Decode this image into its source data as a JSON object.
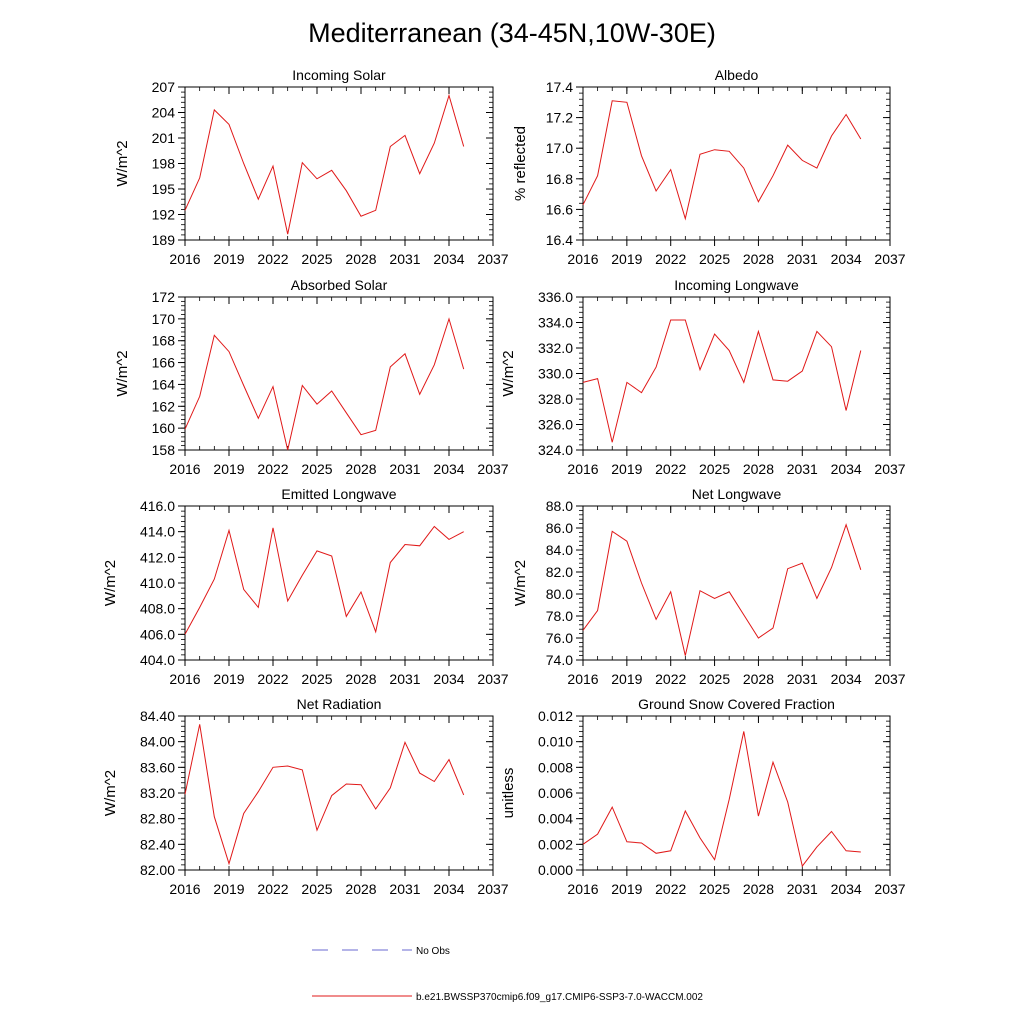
{
  "page": {
    "title": "Mediterranean (34-45N,10W-30E)"
  },
  "legend": {
    "obs_label": "No Obs",
    "obs_color": "#6a6ad0",
    "model_label": "b.e21.BWSSP370cmip6.f09_g17.CMIP6-SSP3-7.0-WACCM.002",
    "model_color": "#e01818"
  },
  "chart_data": [
    {
      "type": "line",
      "title": "Incoming Solar",
      "ylabel": "W/m^2",
      "xlim": [
        2016,
        2037
      ],
      "ylim": [
        189,
        207
      ],
      "xticks": [
        2016,
        2019,
        2022,
        2025,
        2028,
        2031,
        2034,
        2037
      ],
      "xtick_labels": [
        "2016",
        "2019",
        "2022",
        "2025",
        "2028",
        "2031",
        "2034",
        "2037"
      ],
      "yticks": [
        189,
        192,
        195,
        198,
        201,
        204,
        207
      ],
      "ytick_labels": [
        "189",
        "192",
        "195",
        "198",
        "201",
        "204",
        "207"
      ],
      "ymajor": 3,
      "yminor": 0.6,
      "xminor": 1,
      "series": [
        {
          "name": "b.e21.BWSSP370cmip6.f09_g17.CMIP6-SSP3-7.0-WACCM.002",
          "x": [
            2016,
            2017,
            2018,
            2019,
            2020,
            2021,
            2022,
            2023,
            2024,
            2025,
            2026,
            2027,
            2028,
            2029,
            2030,
            2031,
            2032,
            2033,
            2034,
            2035
          ],
          "values": [
            192.5,
            196.3,
            204.3,
            202.6,
            198.0,
            193.8,
            197.7,
            189.7,
            198.1,
            196.2,
            197.2,
            194.8,
            191.8,
            192.5,
            200.0,
            201.3,
            196.8,
            200.4,
            206.0,
            200.0
          ]
        }
      ]
    },
    {
      "type": "line",
      "title": "Albedo",
      "ylabel": "% reflected",
      "xlim": [
        2016,
        2037
      ],
      "ylim": [
        16.4,
        17.4
      ],
      "xticks": [
        2016,
        2019,
        2022,
        2025,
        2028,
        2031,
        2034,
        2037
      ],
      "xtick_labels": [
        "2016",
        "2019",
        "2022",
        "2025",
        "2028",
        "2031",
        "2034",
        "2037"
      ],
      "yticks": [
        16.4,
        16.6,
        16.8,
        17.0,
        17.2,
        17.4
      ],
      "ytick_labels": [
        "16.4",
        "16.6",
        "16.8",
        "17.0",
        "17.2",
        "17.4"
      ],
      "ymajor": 0.2,
      "yminor": 0.04,
      "xminor": 1,
      "series": [
        {
          "name": "b.e21.BWSSP370cmip6.f09_g17.CMIP6-SSP3-7.0-WACCM.002",
          "x": [
            2016,
            2017,
            2018,
            2019,
            2020,
            2021,
            2022,
            2023,
            2024,
            2025,
            2026,
            2027,
            2028,
            2029,
            2030,
            2031,
            2032,
            2033,
            2034,
            2035
          ],
          "values": [
            16.63,
            16.82,
            17.31,
            17.3,
            16.95,
            16.72,
            16.86,
            16.54,
            16.96,
            16.99,
            16.98,
            16.87,
            16.65,
            16.82,
            17.02,
            16.92,
            16.87,
            17.08,
            17.22,
            17.06
          ]
        }
      ]
    },
    {
      "type": "line",
      "title": "Absorbed Solar",
      "ylabel": "W/m^2",
      "xlim": [
        2016,
        2037
      ],
      "ylim": [
        158,
        172
      ],
      "xticks": [
        2016,
        2019,
        2022,
        2025,
        2028,
        2031,
        2034,
        2037
      ],
      "xtick_labels": [
        "2016",
        "2019",
        "2022",
        "2025",
        "2028",
        "2031",
        "2034",
        "2037"
      ],
      "yticks": [
        158,
        160,
        162,
        164,
        166,
        168,
        170,
        172
      ],
      "ytick_labels": [
        "158",
        "160",
        "162",
        "164",
        "166",
        "168",
        "170",
        "172"
      ],
      "ymajor": 2,
      "yminor": 0.4,
      "xminor": 1,
      "series": [
        {
          "name": "b.e21.BWSSP370cmip6.f09_g17.CMIP6-SSP3-7.0-WACCM.002",
          "x": [
            2016,
            2017,
            2018,
            2019,
            2020,
            2021,
            2022,
            2023,
            2024,
            2025,
            2026,
            2027,
            2028,
            2029,
            2030,
            2031,
            2032,
            2033,
            2034,
            2035
          ],
          "values": [
            159.9,
            162.9,
            168.5,
            167.0,
            163.9,
            160.9,
            163.8,
            158.0,
            163.9,
            162.2,
            163.4,
            161.4,
            159.4,
            159.8,
            165.6,
            166.8,
            163.1,
            165.8,
            170.0,
            165.4
          ]
        }
      ]
    },
    {
      "type": "line",
      "title": "Incoming Longwave",
      "ylabel": "W/m^2",
      "xlim": [
        2016,
        2037
      ],
      "ylim": [
        324,
        336
      ],
      "xticks": [
        2016,
        2019,
        2022,
        2025,
        2028,
        2031,
        2034,
        2037
      ],
      "xtick_labels": [
        "2016",
        "2019",
        "2022",
        "2025",
        "2028",
        "2031",
        "2034",
        "2037"
      ],
      "yticks": [
        324,
        326,
        328,
        330,
        332,
        334,
        336
      ],
      "ytick_labels": [
        "324.0",
        "326.0",
        "328.0",
        "330.0",
        "332.0",
        "334.0",
        "336.0"
      ],
      "ymajor": 2,
      "yminor": 0.4,
      "xminor": 1,
      "series": [
        {
          "name": "b.e21.BWSSP370cmip6.f09_g17.CMIP6-SSP3-7.0-WACCM.002",
          "x": [
            2016,
            2017,
            2018,
            2019,
            2020,
            2021,
            2022,
            2023,
            2024,
            2025,
            2026,
            2027,
            2028,
            2029,
            2030,
            2031,
            2032,
            2033,
            2034,
            2035
          ],
          "values": [
            329.3,
            329.6,
            324.6,
            329.3,
            328.5,
            330.5,
            334.2,
            334.2,
            330.3,
            333.1,
            331.8,
            329.3,
            333.3,
            329.5,
            329.4,
            330.2,
            333.3,
            332.1,
            327.1,
            331.8
          ]
        }
      ]
    },
    {
      "type": "line",
      "title": "Emitted Longwave",
      "ylabel": "W/m^2",
      "xlim": [
        2016,
        2037
      ],
      "ylim": [
        404,
        416
      ],
      "xticks": [
        2016,
        2019,
        2022,
        2025,
        2028,
        2031,
        2034,
        2037
      ],
      "xtick_labels": [
        "2016",
        "2019",
        "2022",
        "2025",
        "2028",
        "2031",
        "2034",
        "2037"
      ],
      "yticks": [
        404,
        406,
        408,
        410,
        412,
        414,
        416
      ],
      "ytick_labels": [
        "404.0",
        "406.0",
        "408.0",
        "410.0",
        "412.0",
        "414.0",
        "416.0"
      ],
      "ymajor": 2,
      "yminor": 0.4,
      "xminor": 1,
      "series": [
        {
          "name": "b.e21.BWSSP370cmip6.f09_g17.CMIP6-SSP3-7.0-WACCM.002",
          "x": [
            2016,
            2017,
            2018,
            2019,
            2020,
            2021,
            2022,
            2023,
            2024,
            2025,
            2026,
            2027,
            2028,
            2029,
            2030,
            2031,
            2032,
            2033,
            2034,
            2035
          ],
          "values": [
            406.0,
            408.1,
            410.3,
            414.1,
            409.5,
            408.1,
            414.3,
            408.6,
            410.6,
            412.5,
            412.1,
            407.4,
            409.3,
            406.2,
            411.6,
            413.0,
            412.9,
            414.4,
            413.4,
            414.0
          ]
        }
      ]
    },
    {
      "type": "line",
      "title": "Net Longwave",
      "ylabel": "W/m^2",
      "xlim": [
        2016,
        2037
      ],
      "ylim": [
        74,
        88
      ],
      "xticks": [
        2016,
        2019,
        2022,
        2025,
        2028,
        2031,
        2034,
        2037
      ],
      "xtick_labels": [
        "2016",
        "2019",
        "2022",
        "2025",
        "2028",
        "2031",
        "2034",
        "2037"
      ],
      "yticks": [
        74,
        76,
        78,
        80,
        82,
        84,
        86,
        88
      ],
      "ytick_labels": [
        "74.0",
        "76.0",
        "78.0",
        "80.0",
        "82.0",
        "84.0",
        "86.0",
        "88.0"
      ],
      "ymajor": 2,
      "yminor": 0.4,
      "xminor": 1,
      "series": [
        {
          "name": "b.e21.BWSSP370cmip6.f09_g17.CMIP6-SSP3-7.0-WACCM.002",
          "x": [
            2016,
            2017,
            2018,
            2019,
            2020,
            2021,
            2022,
            2023,
            2024,
            2025,
            2026,
            2027,
            2028,
            2029,
            2030,
            2031,
            2032,
            2033,
            2034,
            2035
          ],
          "values": [
            76.7,
            78.5,
            85.7,
            84.8,
            81.0,
            77.7,
            80.2,
            74.4,
            80.3,
            79.6,
            80.2,
            78.1,
            76.0,
            76.9,
            82.3,
            82.8,
            79.6,
            82.4,
            86.3,
            82.2
          ]
        }
      ]
    },
    {
      "type": "line",
      "title": "Net Radiation",
      "ylabel": "W/m^2",
      "xlim": [
        2016,
        2037
      ],
      "ylim": [
        82.0,
        84.4
      ],
      "xticks": [
        2016,
        2019,
        2022,
        2025,
        2028,
        2031,
        2034,
        2037
      ],
      "xtick_labels": [
        "2016",
        "2019",
        "2022",
        "2025",
        "2028",
        "2031",
        "2034",
        "2037"
      ],
      "yticks": [
        82.0,
        82.4,
        82.8,
        83.2,
        83.6,
        84.0,
        84.4
      ],
      "ytick_labels": [
        "82.00",
        "82.40",
        "82.80",
        "83.20",
        "83.60",
        "84.00",
        "84.40"
      ],
      "ymajor": 0.4,
      "yminor": 0.08,
      "xminor": 1,
      "series": [
        {
          "name": "b.e21.BWSSP370cmip6.f09_g17.CMIP6-SSP3-7.0-WACCM.002",
          "x": [
            2016,
            2017,
            2018,
            2019,
            2020,
            2021,
            2022,
            2023,
            2024,
            2025,
            2026,
            2027,
            2028,
            2029,
            2030,
            2031,
            2032,
            2033,
            2034,
            2035
          ],
          "values": [
            83.18,
            84.27,
            82.83,
            82.1,
            82.88,
            83.22,
            83.6,
            83.62,
            83.56,
            82.62,
            83.16,
            83.34,
            83.33,
            82.95,
            83.28,
            83.99,
            83.51,
            83.38,
            83.72,
            83.17
          ]
        }
      ]
    },
    {
      "type": "line",
      "title": "Ground Snow Covered Fraction",
      "ylabel": "unitless",
      "xlim": [
        2016,
        2037
      ],
      "ylim": [
        0.0,
        0.012
      ],
      "xticks": [
        2016,
        2019,
        2022,
        2025,
        2028,
        2031,
        2034,
        2037
      ],
      "xtick_labels": [
        "2016",
        "2019",
        "2022",
        "2025",
        "2028",
        "2031",
        "2034",
        "2037"
      ],
      "yticks": [
        0.0,
        0.002,
        0.004,
        0.006,
        0.008,
        0.01,
        0.012
      ],
      "ytick_labels": [
        "0.000",
        "0.002",
        "0.004",
        "0.006",
        "0.008",
        "0.010",
        "0.012"
      ],
      "ymajor": 0.002,
      "yminor": 0.0004,
      "xminor": 1,
      "series": [
        {
          "name": "b.e21.BWSSP370cmip6.f09_g17.CMIP6-SSP3-7.0-WACCM.002",
          "x": [
            2016,
            2017,
            2018,
            2019,
            2020,
            2021,
            2022,
            2023,
            2024,
            2025,
            2026,
            2027,
            2028,
            2029,
            2030,
            2031,
            2032,
            2033,
            2034,
            2035
          ],
          "values": [
            0.002,
            0.0028,
            0.0049,
            0.0022,
            0.0021,
            0.0013,
            0.0015,
            0.0046,
            0.0025,
            0.0008,
            0.0055,
            0.0108,
            0.0042,
            0.0084,
            0.0053,
            0.0003,
            0.0018,
            0.003,
            0.0015,
            0.0014
          ]
        }
      ]
    }
  ]
}
